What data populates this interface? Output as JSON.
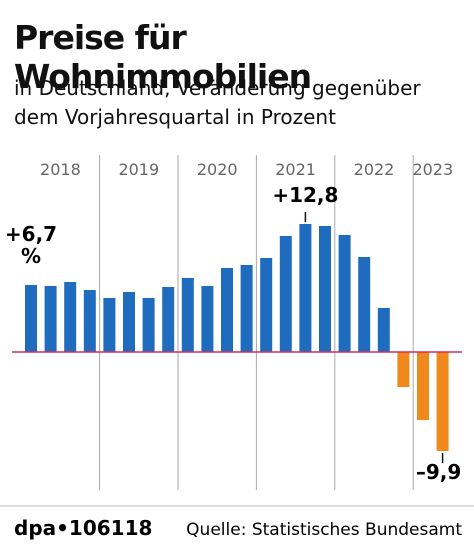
{
  "chart_data": {
    "type": "bar",
    "title": "Preise für Wohnimmobilien",
    "subtitle": "in Deutschland,  Veränderung gegenüber dem Vorjahresquartal in Prozent",
    "year_labels": [
      "2018",
      "2019",
      "2020",
      "2021",
      "2022",
      "2023"
    ],
    "categories": [
      null,
      null,
      null,
      null,
      null,
      null,
      null,
      null,
      null,
      null,
      null,
      null,
      null,
      null,
      null,
      null,
      null,
      null,
      null,
      null,
      null,
      null
    ],
    "values": [
      6.7,
      6.6,
      7.0,
      6.2,
      5.4,
      6.0,
      5.4,
      6.5,
      7.4,
      6.6,
      8.4,
      8.7,
      9.4,
      11.6,
      12.8,
      12.6,
      11.7,
      9.5,
      4.4,
      -3.5,
      -6.8,
      -9.9
    ],
    "value_labels": [
      "+6,7",
      null,
      null,
      null,
      null,
      null,
      null,
      null,
      null,
      null,
      null,
      null,
      null,
      null,
      "+12,8",
      null,
      null,
      null,
      null,
      null,
      null,
      "–9,9"
    ],
    "unit_label": "%",
    "positive_color": "#1f6cbf",
    "negative_color": "#f0891c",
    "ylim": [
      -12,
      16
    ],
    "source": "Quelle: Statistisches Bundesamt",
    "agency": "dpa•106118"
  }
}
